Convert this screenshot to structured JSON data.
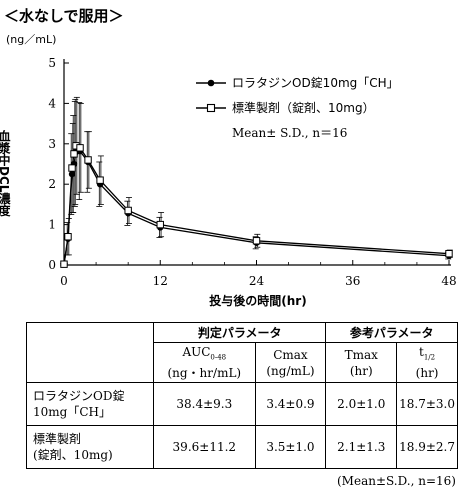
{
  "heading": "＜水なしで服用＞",
  "chart_data": {
    "type": "line",
    "title": "＜水なしで服用＞",
    "ylabel": "血漿中DCL濃度",
    "yunit": "(ng／mL)",
    "xlabel": "投与後の時間(hr)",
    "xlim": [
      0,
      48
    ],
    "ylim": [
      0,
      5
    ],
    "xticks": [
      0,
      12,
      24,
      36,
      48
    ],
    "yticks": [
      0,
      1,
      2,
      3,
      4,
      5
    ],
    "grid": false,
    "legend_position": "top-right",
    "stat_note": "Mean± S.D., n＝16",
    "series": [
      {
        "name": "ロラタジンOD錠10mg「CH」",
        "marker": "filled-circle",
        "color": "#000000",
        "x": [
          0,
          0.5,
          1,
          1.25,
          1.5,
          2,
          3,
          4.5,
          8,
          12,
          24,
          48
        ],
        "y": [
          0.02,
          0.65,
          2.25,
          2.5,
          2.8,
          2.82,
          2.55,
          2.0,
          1.28,
          0.93,
          0.55,
          0.23
        ],
        "sd": [
          0.02,
          0.4,
          1.0,
          1.2,
          1.3,
          1.2,
          0.75,
          0.55,
          0.3,
          0.25,
          0.15,
          0.08
        ]
      },
      {
        "name": "標準製剤（錠剤、10mg）",
        "marker": "open-square",
        "color": "#000000",
        "x": [
          0,
          0.5,
          1,
          1.25,
          1.5,
          2,
          3,
          4.5,
          8,
          12,
          24,
          48
        ],
        "y": [
          0.02,
          0.7,
          2.4,
          2.75,
          2.95,
          2.9,
          2.6,
          2.1,
          1.35,
          1.0,
          0.6,
          0.28
        ],
        "sd": [
          0.02,
          0.45,
          1.1,
          1.3,
          1.2,
          1.1,
          0.7,
          0.6,
          0.32,
          0.3,
          0.16,
          0.09
        ]
      }
    ]
  },
  "table": {
    "group_headers": [
      "判定パラメータ",
      "参考パラメータ"
    ],
    "param_headers": [
      {
        "name": "AUC",
        "sub": "0-48",
        "unit": "(ng・hr/mL)"
      },
      {
        "name": "Cmax",
        "sub": "",
        "unit": "(ng/mL)"
      },
      {
        "name": "Tmax",
        "sub": "",
        "unit": "(hr)"
      },
      {
        "name": "t",
        "sub": "1/2",
        "unit": "(hr)"
      }
    ],
    "rows": [
      {
        "label": [
          "ロラタジンOD錠",
          "10mg「CH」"
        ],
        "values": [
          "38.4±9.3",
          "3.4±0.9",
          "2.0±1.0",
          "18.7±3.0"
        ]
      },
      {
        "label": [
          "標準製剤",
          "(錠剤、10mg)"
        ],
        "values": [
          "39.6±11.2",
          "3.5±1.0",
          "2.1±1.3",
          "18.9±2.7"
        ]
      }
    ]
  },
  "footnote": "(Mean±S.D., n=16)"
}
